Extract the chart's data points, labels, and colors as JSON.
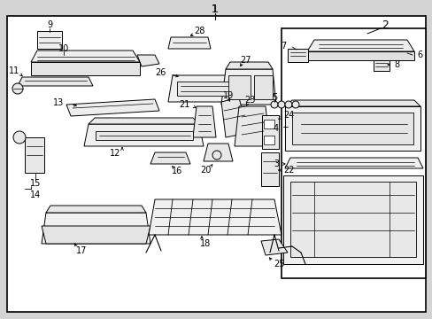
{
  "bg_color": "#d4d4d4",
  "white": "#ffffff",
  "black": "#000000",
  "light_gray": "#e8e8e8",
  "fig_width": 4.89,
  "fig_height": 3.6,
  "dpi": 100
}
